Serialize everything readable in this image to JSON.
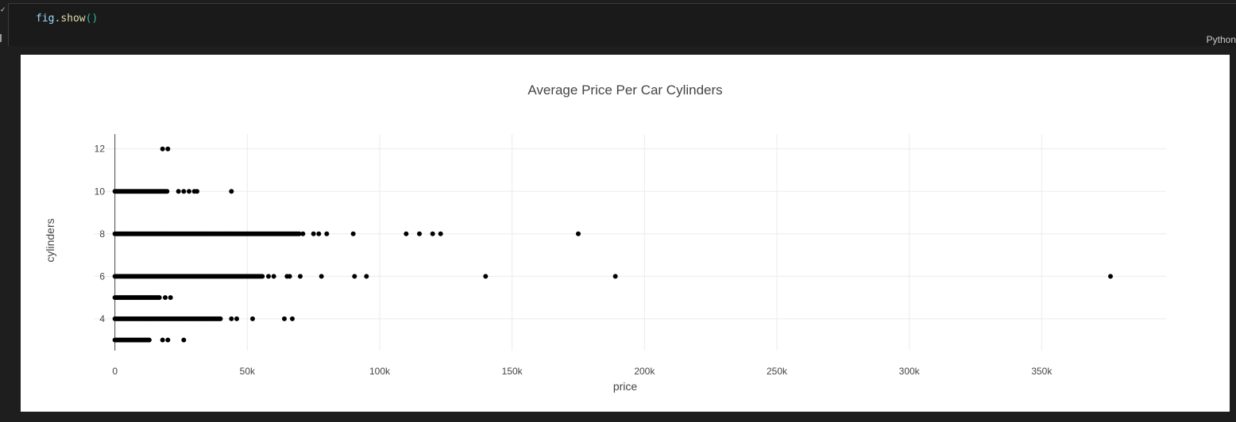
{
  "cell": {
    "code": {
      "var": "fig",
      "dot": ".",
      "fn": "show",
      "parens": "()"
    },
    "language": "Python"
  },
  "chart_data": {
    "type": "scatter",
    "title": "Average Price Per Car Cylinders",
    "xlabel": "price",
    "ylabel": "cylinders",
    "xlim": [
      -8000,
      397000
    ],
    "ylim": [
      2.5,
      12.7
    ],
    "x_ticks": [
      0,
      50000,
      100000,
      150000,
      200000,
      250000,
      300000,
      350000
    ],
    "x_tick_labels": [
      "0",
      "50k",
      "100k",
      "150k",
      "200k",
      "250k",
      "300k",
      "350k"
    ],
    "y_ticks": [
      4,
      6,
      8,
      10,
      12
    ],
    "y_tick_labels": [
      "4",
      "6",
      "8",
      "10",
      "12"
    ],
    "grid": true,
    "marker_color": "#000000",
    "series": [
      {
        "points": [
          {
            "x": 18000,
            "y": 12
          },
          {
            "x": 20000,
            "y": 12
          },
          {
            "x": 24000,
            "y": 10
          },
          {
            "x": 26000,
            "y": 10
          },
          {
            "x": 28000,
            "y": 10
          },
          {
            "x": 30000,
            "y": 10
          },
          {
            "x": 31000,
            "y": 10
          },
          {
            "x": 44000,
            "y": 10
          },
          {
            "x": 71000,
            "y": 8
          },
          {
            "x": 75000,
            "y": 8
          },
          {
            "x": 77000,
            "y": 8
          },
          {
            "x": 80000,
            "y": 8
          },
          {
            "x": 90000,
            "y": 8
          },
          {
            "x": 110000,
            "y": 8
          },
          {
            "x": 115000,
            "y": 8
          },
          {
            "x": 120000,
            "y": 8
          },
          {
            "x": 123000,
            "y": 8
          },
          {
            "x": 175000,
            "y": 8
          },
          {
            "x": 58000,
            "y": 6
          },
          {
            "x": 60000,
            "y": 6
          },
          {
            "x": 65000,
            "y": 6
          },
          {
            "x": 66000,
            "y": 6
          },
          {
            "x": 70000,
            "y": 6
          },
          {
            "x": 78000,
            "y": 6
          },
          {
            "x": 90500,
            "y": 6
          },
          {
            "x": 95000,
            "y": 6
          },
          {
            "x": 140000,
            "y": 6
          },
          {
            "x": 189000,
            "y": 6
          },
          {
            "x": 376000,
            "y": 6
          },
          {
            "x": 19000,
            "y": 5
          },
          {
            "x": 21000,
            "y": 5
          },
          {
            "x": 44000,
            "y": 4
          },
          {
            "x": 46000,
            "y": 4
          },
          {
            "x": 52000,
            "y": 4
          },
          {
            "x": 64000,
            "y": 4
          },
          {
            "x": 67000,
            "y": 4
          },
          {
            "x": 18000,
            "y": 3
          },
          {
            "x": 20000,
            "y": 3
          },
          {
            "x": 26000,
            "y": 3
          }
        ],
        "dense_ranges": [
          {
            "y": 10,
            "from": 0,
            "to": 20000
          },
          {
            "y": 8,
            "from": 0,
            "to": 70000
          },
          {
            "y": 6,
            "from": 0,
            "to": 56000
          },
          {
            "y": 5,
            "from": 0,
            "to": 17000
          },
          {
            "y": 4,
            "from": 0,
            "to": 40000
          },
          {
            "y": 3,
            "from": 0,
            "to": 13000
          }
        ]
      }
    ]
  }
}
